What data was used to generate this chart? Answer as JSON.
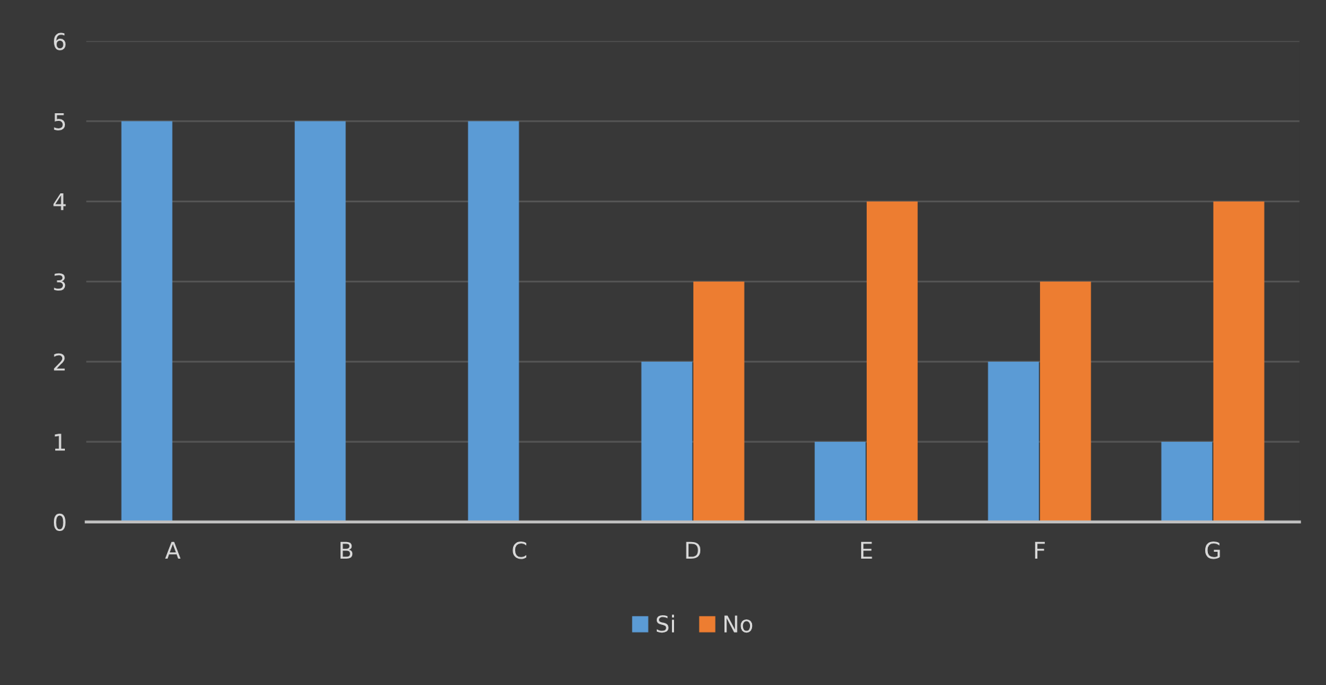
{
  "chart_data": {
    "type": "bar",
    "categories": [
      "A",
      "B",
      "C",
      "D",
      "E",
      "F",
      "G"
    ],
    "series": [
      {
        "name": "Si",
        "color": "#5b9bd5",
        "values": [
          5,
          5,
          5,
          2,
          1,
          2,
          1
        ]
      },
      {
        "name": "No",
        "color": "#ed7d31",
        "values": [
          null,
          null,
          null,
          3,
          4,
          3,
          4
        ]
      }
    ],
    "ylim": [
      0,
      6
    ],
    "yticks": [
      0,
      1,
      2,
      3,
      4,
      5,
      6
    ],
    "grid": "y",
    "legend": "bottom"
  }
}
